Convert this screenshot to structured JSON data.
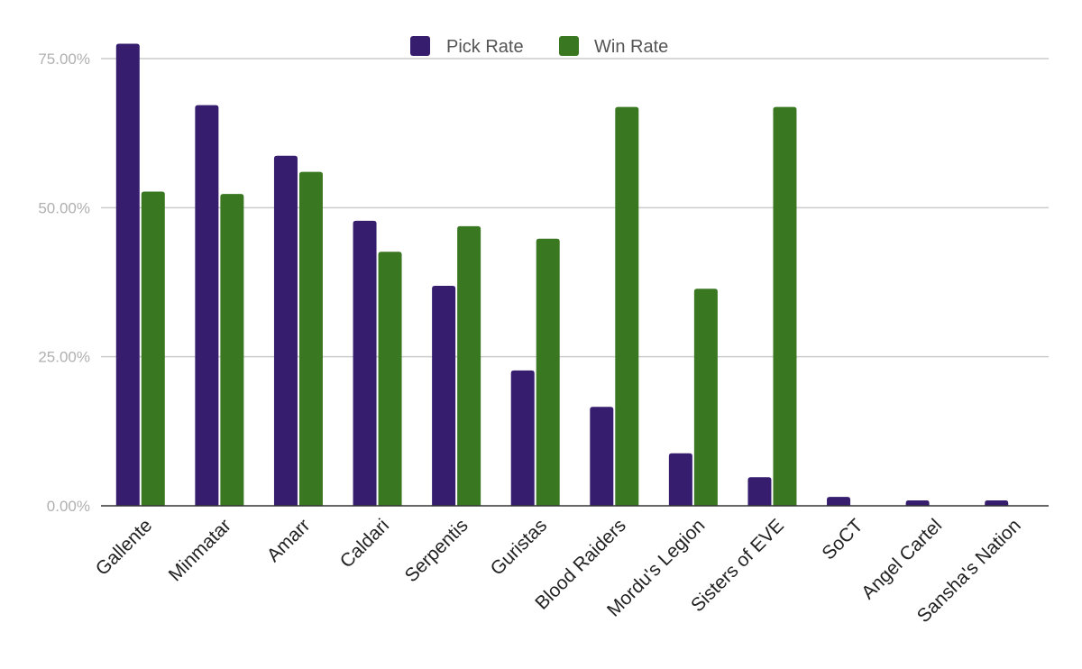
{
  "chart_data": {
    "type": "bar",
    "title": "",
    "xlabel": "",
    "ylabel": "",
    "categories": [
      "Gallente",
      "Minmatar",
      "Amarr",
      "Caldari",
      "Serpentis",
      "Guristas",
      "Blood Raiders",
      "Mordu's Legion",
      "Sisters of EVE",
      "SoCT",
      "Angel Cartel",
      "Sansha's Nation"
    ],
    "series": [
      {
        "name": "Pick Rate",
        "color": "#361d6e",
        "values": [
          77.5,
          67.2,
          58.7,
          47.8,
          36.9,
          22.7,
          16.6,
          8.8,
          4.8,
          1.5,
          0.9,
          0.9
        ]
      },
      {
        "name": "Win Rate",
        "color": "#3a7721",
        "values": [
          52.7,
          52.3,
          56.0,
          42.6,
          46.9,
          44.8,
          66.9,
          36.4,
          66.9,
          0,
          0,
          0
        ]
      }
    ],
    "ylim": [
      0,
      75
    ],
    "yticks": [
      0,
      25,
      50,
      75
    ],
    "ytick_labels": [
      "0.00%",
      "25.00%",
      "50.00%",
      "75.00%"
    ],
    "grid": true,
    "legend_position": "top-center"
  }
}
